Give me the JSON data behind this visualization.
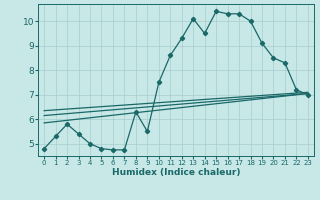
{
  "xlabel": "Humidex (Indice chaleur)",
  "xlim": [
    -0.5,
    23.5
  ],
  "ylim": [
    4.5,
    10.7
  ],
  "xticks": [
    0,
    1,
    2,
    3,
    4,
    5,
    6,
    7,
    8,
    9,
    10,
    11,
    12,
    13,
    14,
    15,
    16,
    17,
    18,
    19,
    20,
    21,
    22,
    23
  ],
  "yticks": [
    5,
    6,
    7,
    8,
    9,
    10
  ],
  "bg_color": "#c8e8e8",
  "grid_color": "#a8cccc",
  "line_color": "#1a6868",
  "line1_x": [
    0,
    1,
    2,
    3,
    4,
    5,
    6,
    7,
    8,
    9,
    10,
    11,
    12,
    13,
    14,
    15,
    16,
    17,
    18,
    19,
    20,
    21,
    22,
    23
  ],
  "line1_y": [
    4.8,
    5.3,
    5.8,
    5.4,
    5.0,
    4.8,
    4.75,
    4.75,
    6.3,
    5.5,
    7.5,
    8.6,
    9.3,
    10.1,
    9.5,
    10.4,
    10.3,
    10.3,
    10.0,
    9.1,
    8.5,
    8.3,
    7.2,
    7.0
  ],
  "line2_x": [
    0,
    23
  ],
  "line2_y": [
    5.85,
    7.05
  ],
  "line3_x": [
    0,
    23
  ],
  "line3_y": [
    6.15,
    7.05
  ],
  "line4_x": [
    0,
    23
  ],
  "line4_y": [
    6.35,
    7.1
  ]
}
